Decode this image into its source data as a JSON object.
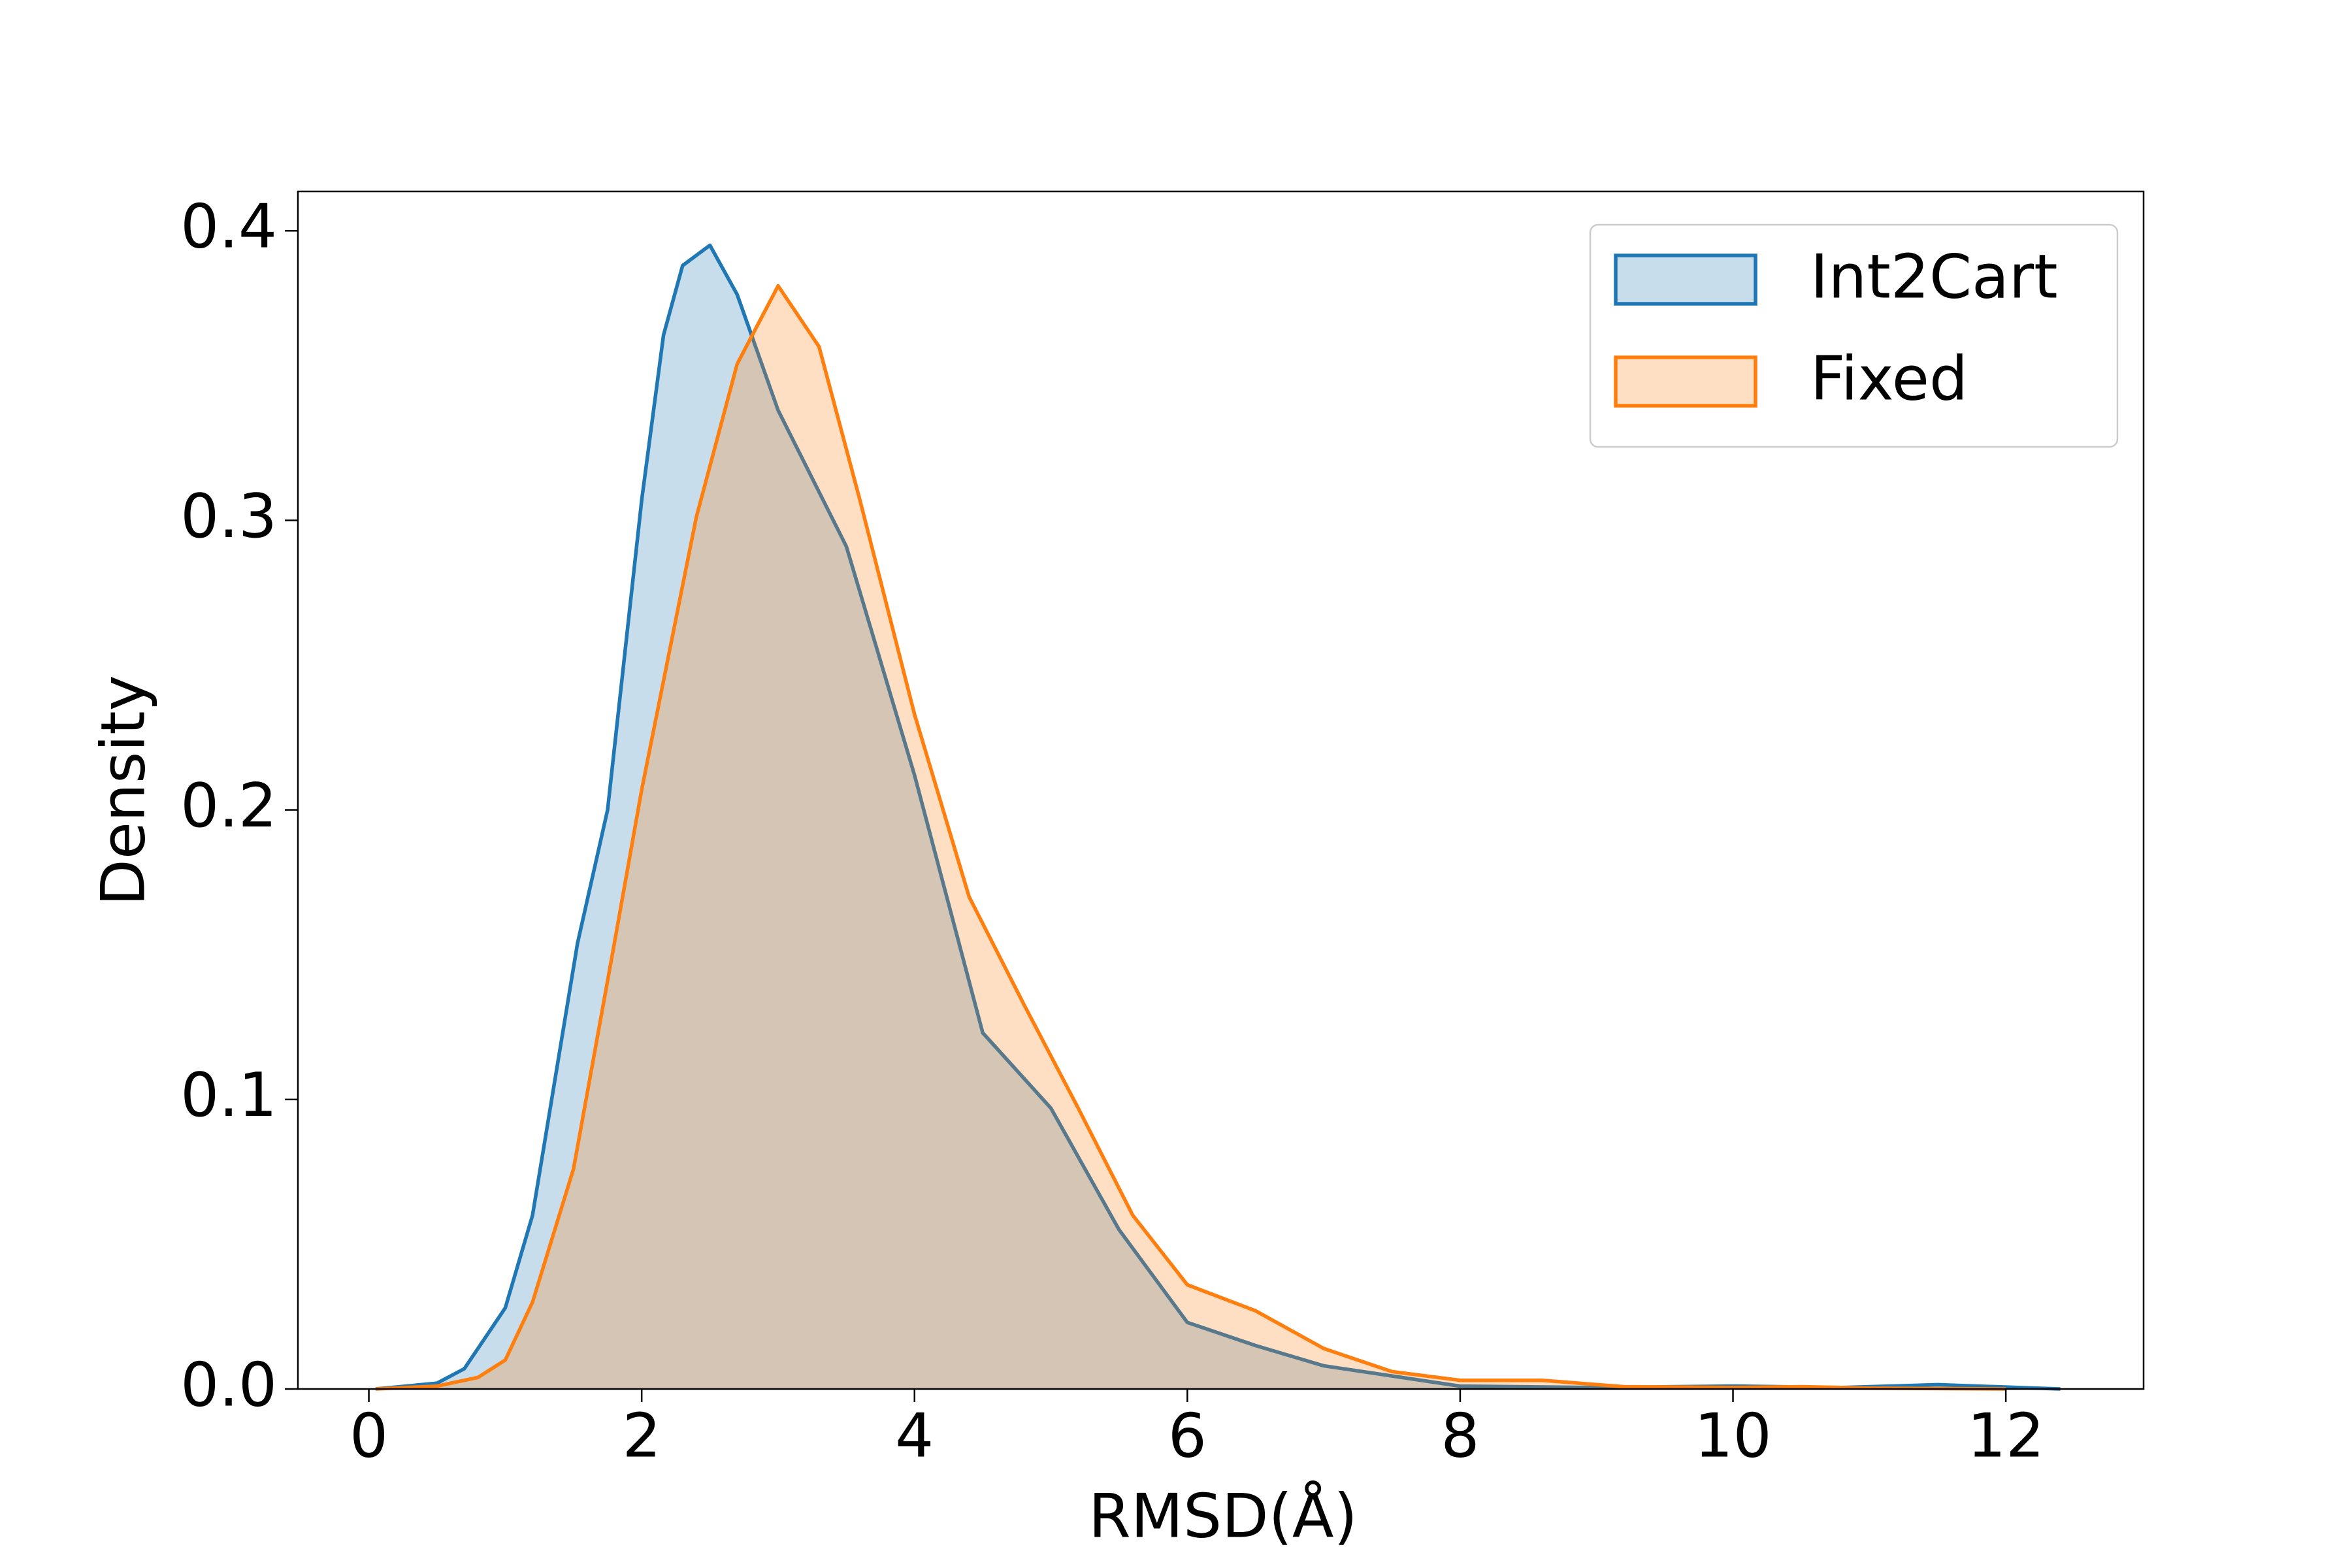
{
  "chart_data": {
    "type": "kde",
    "xlabel": "RMSD(Å)",
    "ylabel": "Density",
    "xlim": [
      -0.52,
      13.01
    ],
    "ylim": [
      0,
      0.4136
    ],
    "xticks": [
      0,
      2,
      4,
      6,
      8,
      10,
      12
    ],
    "yticks": [
      {
        "value": 0,
        "label": "0.0"
      },
      0.1,
      0.2,
      0.3,
      0.4
    ],
    "legend_position": "upper right",
    "series": [
      {
        "name": "Int2Cart",
        "color": "#1f77b4",
        "x": [
          0.05,
          0.5,
          0.7,
          1.0,
          1.2,
          1.53,
          1.75,
          2.0,
          2.16,
          2.3,
          2.5,
          2.7,
          3.0,
          3.5,
          4.0,
          4.5,
          5.0,
          5.5,
          6.0,
          6.5,
          7.0,
          8.0,
          9.0,
          10.0,
          10.8,
          11.5,
          12.4
        ],
        "values": [
          0,
          0.002,
          0.007,
          0.028,
          0.06,
          0.154,
          0.2,
          0.307,
          0.364,
          0.388,
          0.395,
          0.378,
          0.338,
          0.291,
          0.212,
          0.123,
          0.097,
          0.055,
          0.023,
          0.015,
          0.008,
          0.001,
          0.0005,
          0.001,
          0.0005,
          0.0015,
          0
        ]
      },
      {
        "name": "Fixed",
        "color": "#ff7f0e",
        "x": [
          0.05,
          0.5,
          0.8,
          1.0,
          1.2,
          1.5,
          1.8,
          2.0,
          2.4,
          2.7,
          3.0,
          3.3,
          3.6,
          4.0,
          4.4,
          4.8,
          5.2,
          5.6,
          6.0,
          6.5,
          7.0,
          7.5,
          8.0,
          8.6,
          9.2,
          10.0,
          10.5,
          11.0,
          12.0
        ],
        "values": [
          0,
          0.001,
          0.004,
          0.01,
          0.03,
          0.076,
          0.154,
          0.207,
          0.301,
          0.354,
          0.381,
          0.36,
          0.307,
          0.233,
          0.17,
          0.133,
          0.097,
          0.06,
          0.036,
          0.027,
          0.014,
          0.006,
          0.003,
          0.003,
          0.0008,
          0.0005,
          0.0008,
          0.0003,
          0
        ]
      }
    ]
  }
}
